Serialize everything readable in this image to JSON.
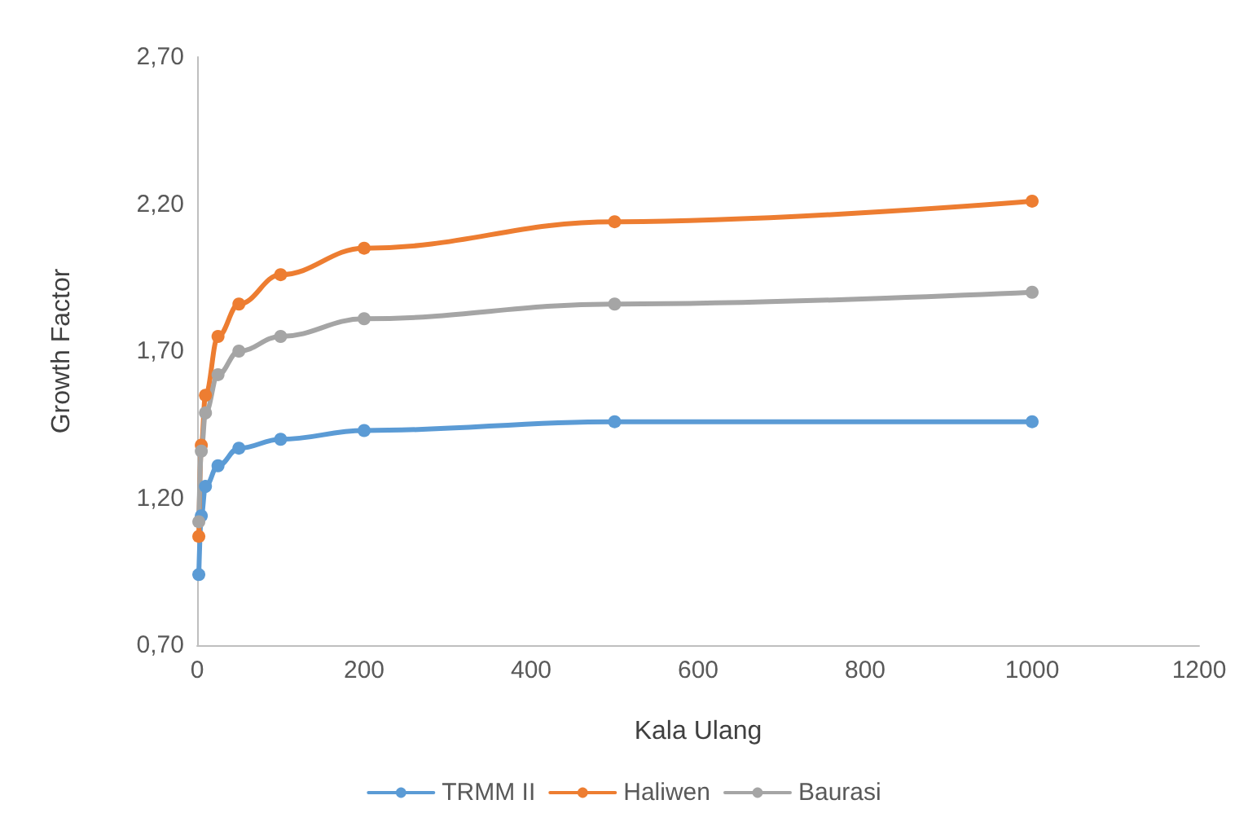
{
  "chart_data": {
    "type": "line",
    "xlabel": "Kala Ulang",
    "ylabel": "Growth Factor",
    "x": [
      2,
      5,
      10,
      25,
      50,
      100,
      200,
      500,
      1000
    ],
    "series": [
      {
        "name": "TRMM II",
        "color": "#5b9bd5",
        "values": [
          0.94,
          1.14,
          1.24,
          1.31,
          1.37,
          1.4,
          1.43,
          1.46,
          1.46
        ]
      },
      {
        "name": "Haliwen",
        "color": "#ed7d31",
        "values": [
          1.07,
          1.38,
          1.55,
          1.75,
          1.86,
          1.96,
          2.05,
          2.14,
          2.21
        ]
      },
      {
        "name": "Baurasi",
        "color": "#a5a5a5",
        "values": [
          1.12,
          1.36,
          1.49,
          1.62,
          1.7,
          1.75,
          1.81,
          1.86,
          1.9
        ]
      }
    ],
    "xlim": [
      0,
      1200
    ],
    "xticks": [
      0,
      200,
      400,
      600,
      800,
      1000,
      1200
    ],
    "ylim": [
      0.7,
      2.7
    ],
    "yticks": [
      {
        "value": 0.7,
        "label": "0,70"
      },
      {
        "value": 1.2,
        "label": "1,20"
      },
      {
        "value": 1.7,
        "label": "1,70"
      },
      {
        "value": 2.2,
        "label": "2,20"
      },
      {
        "value": 2.7,
        "label": "2,70"
      }
    ],
    "grid": false,
    "legend": "bottom",
    "marker": "circle",
    "line_style": "solid"
  }
}
